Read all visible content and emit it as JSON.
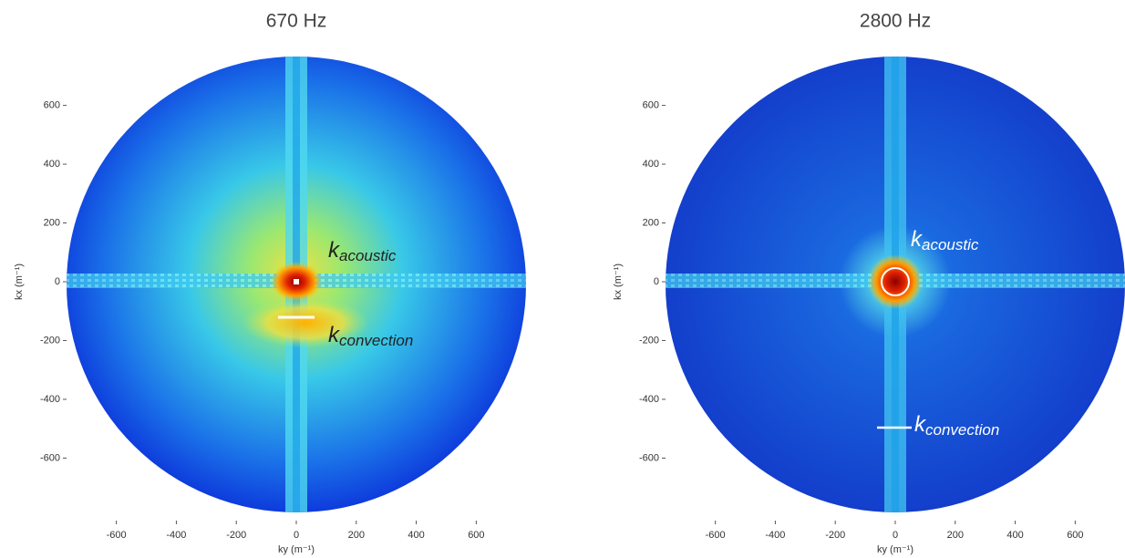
{
  "chart_data": [
    {
      "type": "heatmap",
      "title": "670 Hz",
      "x_label": "ky (m⁻¹)",
      "y_label": "kx (m⁻¹)",
      "xlim": [
        -760,
        760
      ],
      "ylim": [
        -760,
        760
      ],
      "xticks": [
        -600,
        -400,
        -200,
        0,
        200,
        400,
        600
      ],
      "yticks": [
        -600,
        -400,
        -200,
        0,
        200,
        400,
        600
      ],
      "annotations": [
        {
          "text": "k",
          "subscript": "acoustic"
        },
        {
          "text": "k",
          "subscript": "convection"
        }
      ]
    },
    {
      "type": "heatmap",
      "title": "2800 Hz",
      "x_label": "ky (m⁻¹)",
      "y_label": "kx (m⁻¹)",
      "xlim": [
        -760,
        760
      ],
      "ylim": [
        -760,
        760
      ],
      "xticks": [
        -600,
        -400,
        -200,
        0,
        200,
        400,
        600
      ],
      "yticks": [
        -600,
        -400,
        -200,
        0,
        200,
        400,
        600
      ],
      "annotations": [
        {
          "text": "k",
          "subscript": "acoustic"
        },
        {
          "text": "k",
          "subscript": "convection"
        }
      ]
    }
  ]
}
